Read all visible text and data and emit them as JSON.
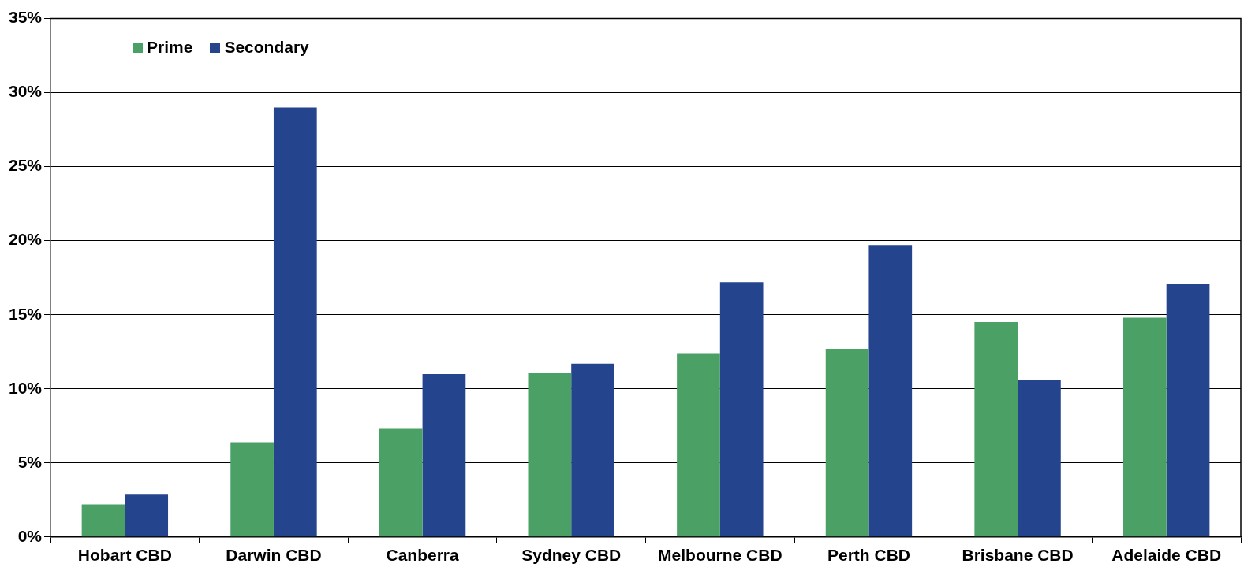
{
  "chart_data": {
    "type": "bar",
    "categories": [
      "Hobart CBD",
      "Darwin CBD",
      "Canberra",
      "Sydney CBD",
      "Melbourne CBD",
      "Perth CBD",
      "Brisbane CBD",
      "Adelaide CBD"
    ],
    "series": [
      {
        "name": "Prime",
        "color": "#4ba065",
        "values": [
          2.2,
          6.4,
          7.3,
          11.1,
          12.4,
          12.7,
          14.5,
          14.8
        ]
      },
      {
        "name": "Secondary",
        "color": "#24448e",
        "values": [
          2.9,
          29.0,
          11.0,
          11.7,
          17.2,
          19.7,
          10.6,
          17.1
        ]
      }
    ],
    "ylim": [
      0,
      35
    ],
    "yticks": [
      {
        "value": 0,
        "label": "0%"
      },
      {
        "value": 5,
        "label": "5%"
      },
      {
        "value": 10,
        "label": "10%"
      },
      {
        "value": 15,
        "label": "15%"
      },
      {
        "value": 20,
        "label": "20%"
      },
      {
        "value": 25,
        "label": "25%"
      },
      {
        "value": 30,
        "label": "30%"
      },
      {
        "value": 35,
        "label": "35%"
      }
    ],
    "grid": "y",
    "legend": "top left"
  }
}
